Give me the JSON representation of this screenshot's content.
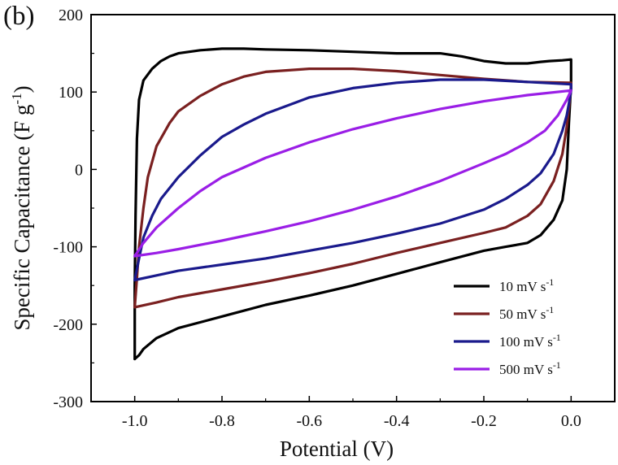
{
  "panel_label": "(b)",
  "chart_data": {
    "type": "line",
    "title": "",
    "xlabel": "Potential (V)",
    "ylabel": "Specific Capacitance (F g",
    "ylabel_sup": "-1",
    "ylabel_end": ")",
    "xlim": [
      -1.1,
      0.1
    ],
    "ylim": [
      -300,
      200
    ],
    "xticks": [
      -1.0,
      -0.8,
      -0.6,
      -0.4,
      -0.2,
      0.0
    ],
    "xtick_labels": [
      "-1.0",
      "-0.8",
      "-0.6",
      "-0.4",
      "-0.2",
      "0.0"
    ],
    "yticks": [
      -300,
      -200,
      -100,
      0,
      100,
      200
    ],
    "ytick_labels": [
      "-300",
      "-200",
      "-100",
      "0",
      "100",
      "200"
    ],
    "grid": false,
    "legend_position": "bottom-right",
    "series": [
      {
        "name": "10 mV s",
        "name_sup": "-1",
        "color": "#000000",
        "points": [
          [
            -1.0,
            -245
          ],
          [
            -1.0,
            -150
          ],
          [
            -0.998,
            -60
          ],
          [
            -0.995,
            40
          ],
          [
            -0.99,
            90
          ],
          [
            -0.98,
            115
          ],
          [
            -0.96,
            130
          ],
          [
            -0.94,
            140
          ],
          [
            -0.92,
            146
          ],
          [
            -0.9,
            150
          ],
          [
            -0.85,
            154
          ],
          [
            -0.8,
            156
          ],
          [
            -0.75,
            156
          ],
          [
            -0.7,
            155
          ],
          [
            -0.6,
            154
          ],
          [
            -0.5,
            152
          ],
          [
            -0.4,
            150
          ],
          [
            -0.3,
            150
          ],
          [
            -0.25,
            146
          ],
          [
            -0.2,
            140
          ],
          [
            -0.15,
            137
          ],
          [
            -0.1,
            137
          ],
          [
            -0.07,
            139
          ],
          [
            -0.05,
            140
          ],
          [
            -0.02,
            141
          ],
          [
            0.0,
            142
          ],
          [
            0.0,
            132
          ],
          [
            0.0,
            110
          ],
          [
            -0.005,
            60
          ],
          [
            -0.01,
            0
          ],
          [
            -0.02,
            -40
          ],
          [
            -0.04,
            -65
          ],
          [
            -0.07,
            -85
          ],
          [
            -0.1,
            -95
          ],
          [
            -0.15,
            -100
          ],
          [
            -0.2,
            -105
          ],
          [
            -0.3,
            -120
          ],
          [
            -0.4,
            -135
          ],
          [
            -0.5,
            -150
          ],
          [
            -0.6,
            -163
          ],
          [
            -0.7,
            -175
          ],
          [
            -0.8,
            -190
          ],
          [
            -0.9,
            -205
          ],
          [
            -0.95,
            -218
          ],
          [
            -0.98,
            -232
          ],
          [
            -0.99,
            -240
          ],
          [
            -1.0,
            -245
          ]
        ]
      },
      {
        "name": "50 mV s",
        "name_sup": "-1",
        "color": "#7a2020",
        "points": [
          [
            -1.0,
            -178
          ],
          [
            -0.995,
            -140
          ],
          [
            -0.99,
            -100
          ],
          [
            -0.98,
            -50
          ],
          [
            -0.97,
            -10
          ],
          [
            -0.95,
            30
          ],
          [
            -0.92,
            60
          ],
          [
            -0.9,
            75
          ],
          [
            -0.85,
            95
          ],
          [
            -0.8,
            110
          ],
          [
            -0.75,
            120
          ],
          [
            -0.7,
            126
          ],
          [
            -0.6,
            130
          ],
          [
            -0.5,
            130
          ],
          [
            -0.4,
            127
          ],
          [
            -0.3,
            122
          ],
          [
            -0.2,
            117
          ],
          [
            -0.1,
            113
          ],
          [
            0.0,
            112
          ],
          [
            0.0,
            104
          ],
          [
            -0.005,
            80
          ],
          [
            -0.01,
            55
          ],
          [
            -0.02,
            20
          ],
          [
            -0.04,
            -15
          ],
          [
            -0.07,
            -45
          ],
          [
            -0.1,
            -60
          ],
          [
            -0.15,
            -75
          ],
          [
            -0.2,
            -82
          ],
          [
            -0.3,
            -95
          ],
          [
            -0.4,
            -108
          ],
          [
            -0.5,
            -122
          ],
          [
            -0.6,
            -134
          ],
          [
            -0.7,
            -145
          ],
          [
            -0.8,
            -155
          ],
          [
            -0.9,
            -165
          ],
          [
            -0.95,
            -172
          ],
          [
            -1.0,
            -178
          ]
        ]
      },
      {
        "name": "100 mV s",
        "name_sup": "-1",
        "color": "#1a1a8c",
        "points": [
          [
            -1.0,
            -143
          ],
          [
            -0.99,
            -115
          ],
          [
            -0.98,
            -88
          ],
          [
            -0.96,
            -60
          ],
          [
            -0.94,
            -38
          ],
          [
            -0.9,
            -10
          ],
          [
            -0.85,
            18
          ],
          [
            -0.8,
            42
          ],
          [
            -0.75,
            58
          ],
          [
            -0.7,
            72
          ],
          [
            -0.6,
            93
          ],
          [
            -0.5,
            105
          ],
          [
            -0.4,
            112
          ],
          [
            -0.3,
            116
          ],
          [
            -0.2,
            116
          ],
          [
            -0.1,
            113
          ],
          [
            0.0,
            110
          ],
          [
            0.0,
            102
          ],
          [
            -0.005,
            85
          ],
          [
            -0.01,
            70
          ],
          [
            -0.02,
            50
          ],
          [
            -0.04,
            20
          ],
          [
            -0.07,
            -5
          ],
          [
            -0.1,
            -20
          ],
          [
            -0.15,
            -38
          ],
          [
            -0.2,
            -52
          ],
          [
            -0.3,
            -70
          ],
          [
            -0.4,
            -83
          ],
          [
            -0.5,
            -95
          ],
          [
            -0.6,
            -105
          ],
          [
            -0.7,
            -115
          ],
          [
            -0.8,
            -123
          ],
          [
            -0.9,
            -131
          ],
          [
            -0.95,
            -137
          ],
          [
            -1.0,
            -143
          ]
        ]
      },
      {
        "name": "500 mV s",
        "name_sup": "-1",
        "color": "#9a1ee6",
        "points": [
          [
            -1.0,
            -112
          ],
          [
            -0.98,
            -95
          ],
          [
            -0.95,
            -75
          ],
          [
            -0.9,
            -50
          ],
          [
            -0.85,
            -28
          ],
          [
            -0.8,
            -10
          ],
          [
            -0.7,
            15
          ],
          [
            -0.6,
            35
          ],
          [
            -0.5,
            52
          ],
          [
            -0.4,
            66
          ],
          [
            -0.3,
            78
          ],
          [
            -0.2,
            88
          ],
          [
            -0.1,
            96
          ],
          [
            0.0,
            102
          ],
          [
            -0.01,
            90
          ],
          [
            -0.03,
            70
          ],
          [
            -0.06,
            50
          ],
          [
            -0.1,
            35
          ],
          [
            -0.15,
            20
          ],
          [
            -0.2,
            8
          ],
          [
            -0.3,
            -15
          ],
          [
            -0.4,
            -35
          ],
          [
            -0.5,
            -52
          ],
          [
            -0.6,
            -67
          ],
          [
            -0.7,
            -80
          ],
          [
            -0.8,
            -92
          ],
          [
            -0.9,
            -103
          ],
          [
            -0.95,
            -108
          ],
          [
            -1.0,
            -112
          ]
        ]
      }
    ]
  }
}
